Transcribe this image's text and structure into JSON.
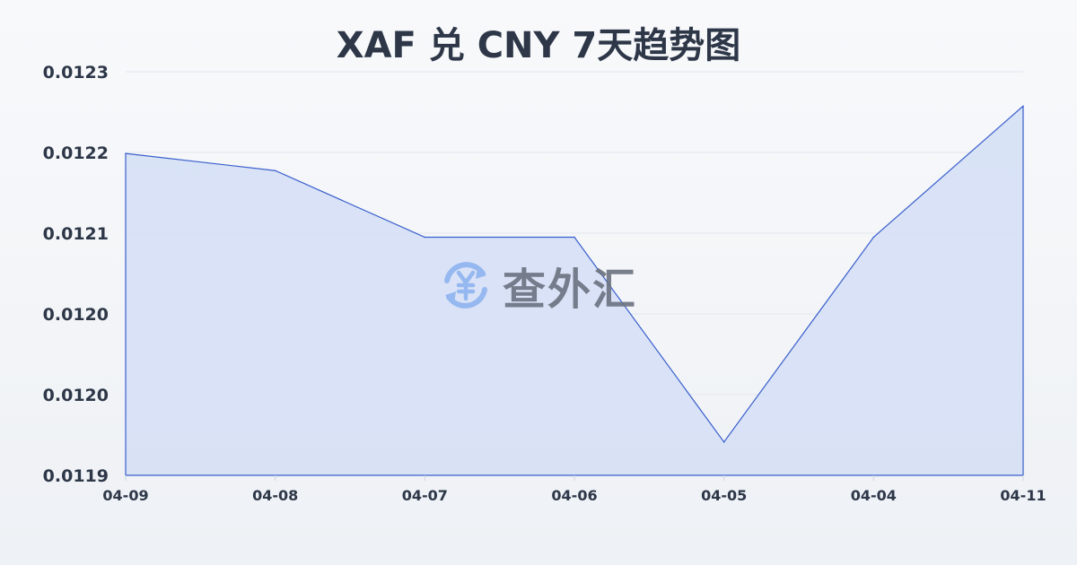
{
  "chart_data": {
    "type": "area",
    "title": "XAF 兑 CNY 7天趋势图",
    "xlabel": "",
    "ylabel": "",
    "categories": [
      "04-09",
      "04-08",
      "04-07",
      "04-06",
      "04-05",
      "04-04",
      "04-11"
    ],
    "values": [
      0.012219,
      0.012202,
      0.012136,
      0.012136,
      0.011933,
      0.012136,
      0.012266
    ],
    "ylim": [
      0.0119,
      0.0123
    ],
    "yticks": [
      0.0119,
      0.01198,
      0.01206,
      0.01214,
      0.01222,
      0.0123
    ],
    "ytick_labels": [
      "0.0119",
      "0.0120",
      "0.0120",
      "0.0121",
      "0.0122",
      "0.0123"
    ],
    "grid": true,
    "colors": {
      "line": "#3a5fcd",
      "fill": "#d6e0f5"
    }
  },
  "watermark": {
    "text": "查外汇",
    "icon": "yen-exchange-icon",
    "icon_color": "#8fb4f0"
  }
}
